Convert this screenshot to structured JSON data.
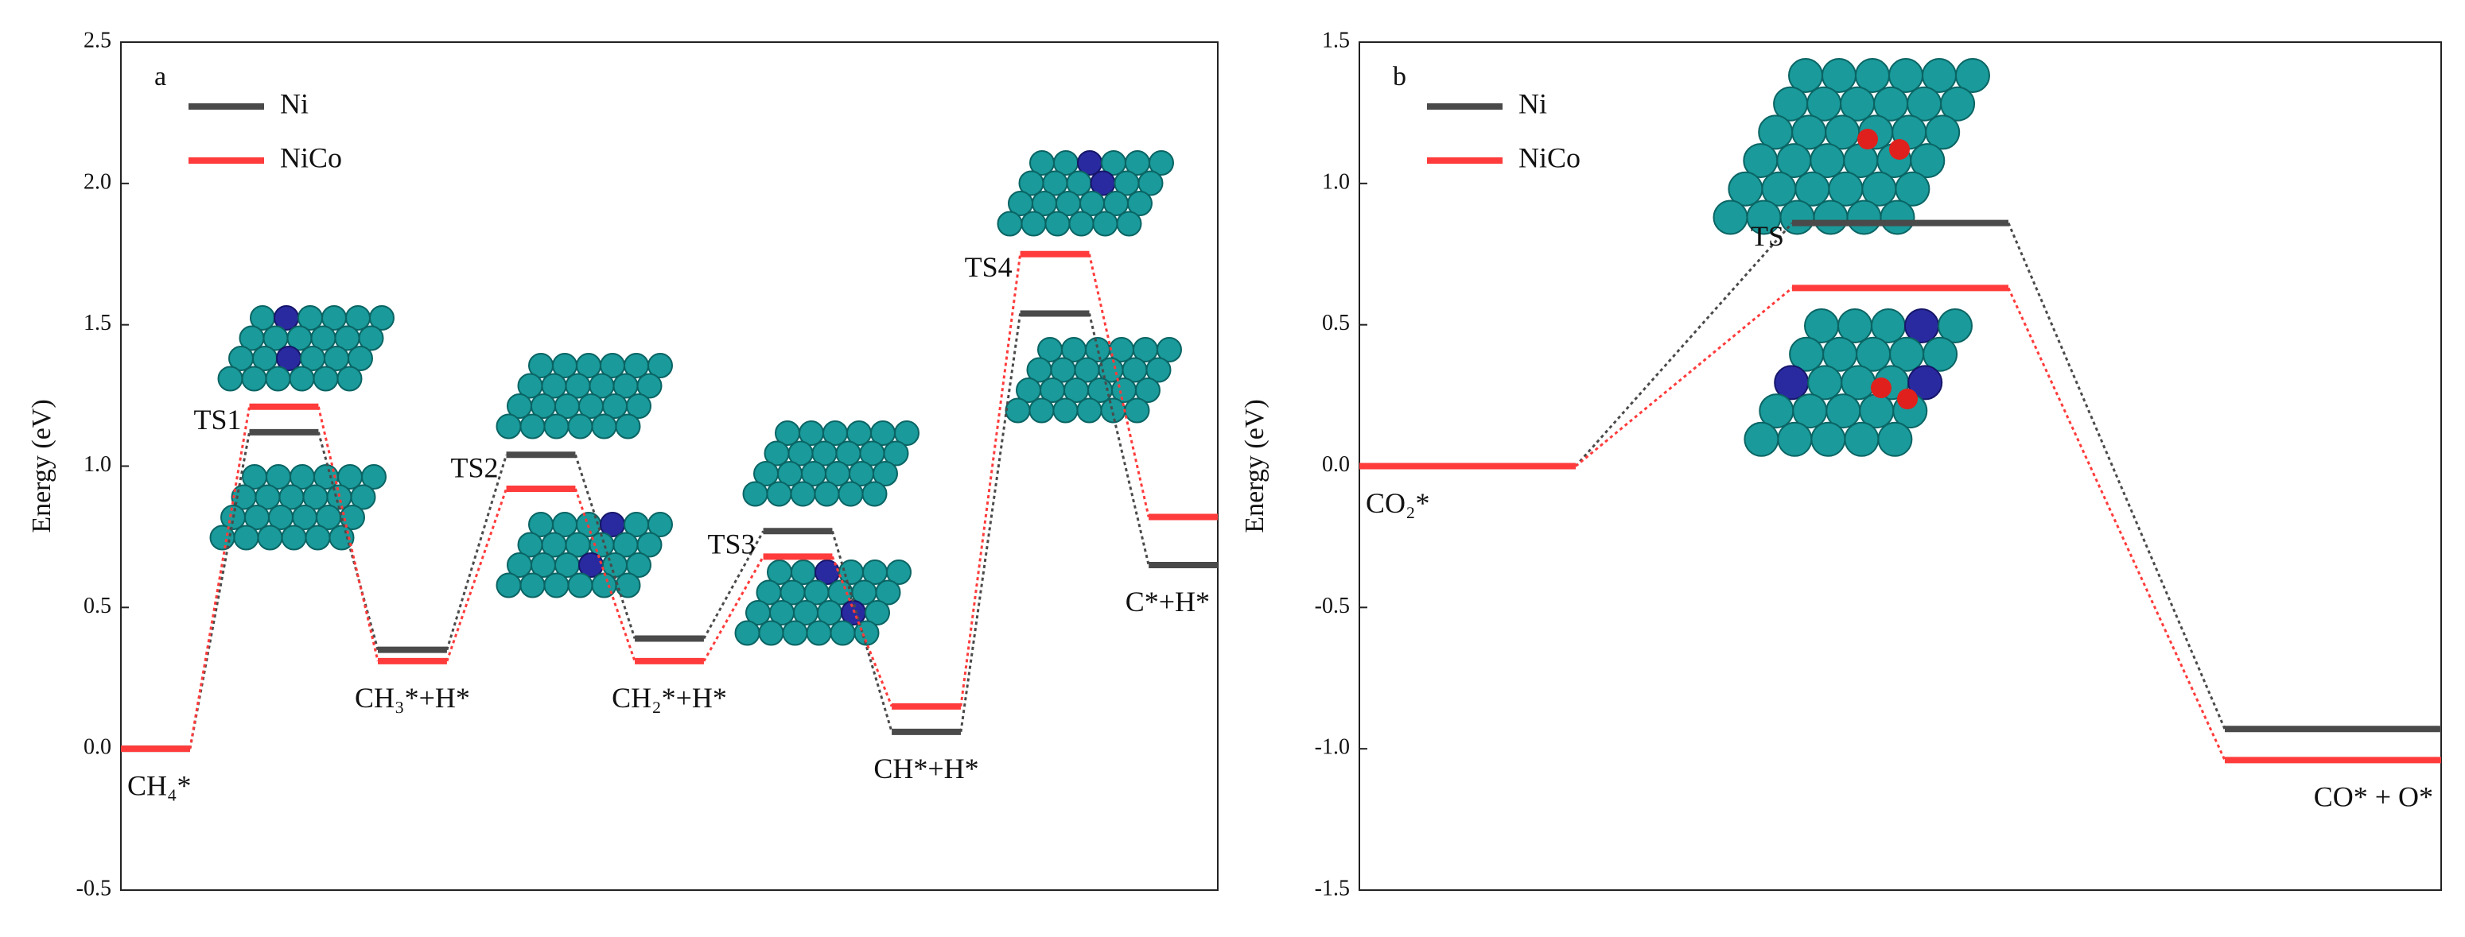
{
  "chart_data": [
    {
      "type": "energy",
      "annotation": "a",
      "ylabel": "Energy (eV)",
      "categories": [
        "CH₄*",
        "TS1",
        "CH₃*+H*",
        "TS2",
        "CH₂*+H*",
        "TS3",
        "CH*+H*",
        "TS4",
        "C*+H*"
      ],
      "series": [
        {
          "name": "Ni",
          "color": "#4a4a4a",
          "values": [
            0,
            1.12,
            0.35,
            1.04,
            0.39,
            0.77,
            0.06,
            1.54,
            0.65
          ]
        },
        {
          "name": "NiCo",
          "color": "#ff3b3b",
          "values": [
            0,
            1.21,
            0.31,
            0.92,
            0.31,
            0.68,
            0.15,
            1.75,
            0.82
          ]
        }
      ],
      "ylim": [
        -0.5,
        2.5
      ],
      "yticks": [
        -0.5,
        {
          "value": 0,
          "label": "0.0"
        },
        0.5,
        {
          "value": 1,
          "label": "1.0"
        },
        1.5,
        {
          "value": 2,
          "label": "2.0"
        },
        2.5
      ]
    },
    {
      "type": "energy",
      "annotation": "b",
      "ylabel": "Energy (eV)",
      "categories": [
        "CO₂*",
        "TS",
        "CO* + O*"
      ],
      "series": [
        {
          "name": "Ni",
          "color": "#4a4a4a",
          "values": [
            0,
            0.86,
            -0.93
          ]
        },
        {
          "name": "NiCo",
          "color": "#ff3b3b",
          "values": [
            0,
            0.63,
            -1.04
          ]
        }
      ],
      "ylim": [
        -1.5,
        1.5
      ],
      "yticks": [
        -1.5,
        {
          "value": -1,
          "label": "-1.0"
        },
        -0.5,
        {
          "value": 0,
          "label": "0.0"
        },
        0.5,
        {
          "value": 1,
          "label": "1.0"
        },
        1.5
      ]
    }
  ]
}
